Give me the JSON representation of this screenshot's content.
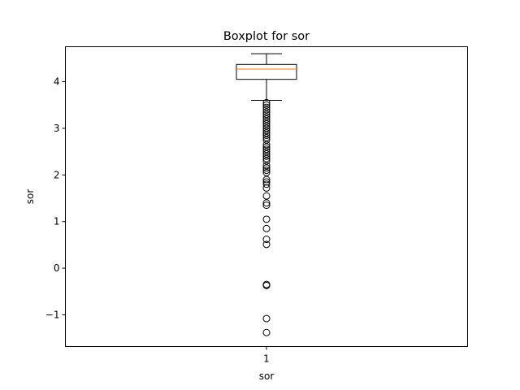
{
  "chart_data": {
    "type": "box",
    "title": "Boxplot for sor",
    "xlabel": "sor",
    "ylabel": "sor",
    "categories": [
      "1"
    ],
    "ylim": [
      -1.68,
      4.75
    ],
    "yticks": [
      -1,
      0,
      1,
      2,
      3,
      4
    ],
    "ytick_labels": [
      "−1",
      "0",
      "1",
      "2",
      "3",
      "4"
    ],
    "grid": false,
    "box": {
      "whisker_low": 3.6,
      "q1": 4.05,
      "median": 4.27,
      "q3": 4.37,
      "whisker_high": 4.6
    },
    "outliers": [
      3.55,
      3.5,
      3.45,
      3.4,
      3.35,
      3.3,
      3.25,
      3.2,
      3.15,
      3.1,
      3.05,
      3.0,
      2.95,
      2.9,
      2.85,
      2.8,
      2.75,
      2.65,
      2.6,
      2.55,
      2.5,
      2.45,
      2.4,
      2.35,
      2.3,
      2.2,
      2.15,
      2.1,
      2.05,
      1.9,
      1.85,
      1.8,
      1.72,
      1.55,
      1.4,
      1.35,
      1.05,
      0.85,
      0.62,
      0.51,
      -0.35,
      -0.37,
      -1.08,
      -1.38
    ],
    "colors": {
      "box": "#000000",
      "median": "#ff7f0e",
      "outlier_edge": "#000000"
    }
  }
}
